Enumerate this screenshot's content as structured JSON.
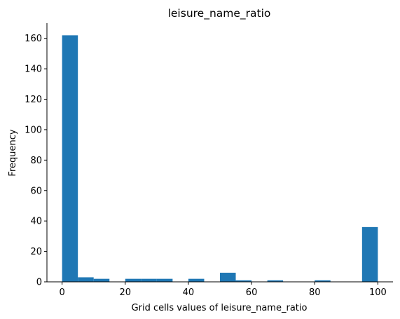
{
  "chart_data": {
    "type": "bar",
    "title": "leisure_name_ratio",
    "xlabel": "Grid cells values of leisure_name_ratio",
    "ylabel": "Frequency",
    "bins": [
      {
        "start": 0,
        "end": 5,
        "count": 162
      },
      {
        "start": 5,
        "end": 10,
        "count": 3
      },
      {
        "start": 10,
        "end": 15,
        "count": 2
      },
      {
        "start": 15,
        "end": 20,
        "count": 0
      },
      {
        "start": 20,
        "end": 25,
        "count": 2
      },
      {
        "start": 25,
        "end": 30,
        "count": 2
      },
      {
        "start": 30,
        "end": 35,
        "count": 2
      },
      {
        "start": 35,
        "end": 40,
        "count": 0
      },
      {
        "start": 40,
        "end": 45,
        "count": 2
      },
      {
        "start": 45,
        "end": 50,
        "count": 0
      },
      {
        "start": 50,
        "end": 55,
        "count": 6
      },
      {
        "start": 55,
        "end": 60,
        "count": 1
      },
      {
        "start": 60,
        "end": 65,
        "count": 0
      },
      {
        "start": 65,
        "end": 70,
        "count": 1
      },
      {
        "start": 70,
        "end": 75,
        "count": 0
      },
      {
        "start": 75,
        "end": 80,
        "count": 0
      },
      {
        "start": 80,
        "end": 85,
        "count": 1
      },
      {
        "start": 85,
        "end": 90,
        "count": 0
      },
      {
        "start": 90,
        "end": 95,
        "count": 0
      },
      {
        "start": 95,
        "end": 100,
        "count": 36
      }
    ],
    "xlim": [
      -4.8,
      104.8
    ],
    "ylim": [
      0,
      170
    ],
    "xticks": [
      0,
      20,
      40,
      60,
      80,
      100
    ],
    "yticks": [
      0,
      20,
      40,
      60,
      80,
      100,
      120,
      140,
      160
    ],
    "bar_color": "#1f77b4",
    "grid": false,
    "spines": "left-bottom"
  }
}
